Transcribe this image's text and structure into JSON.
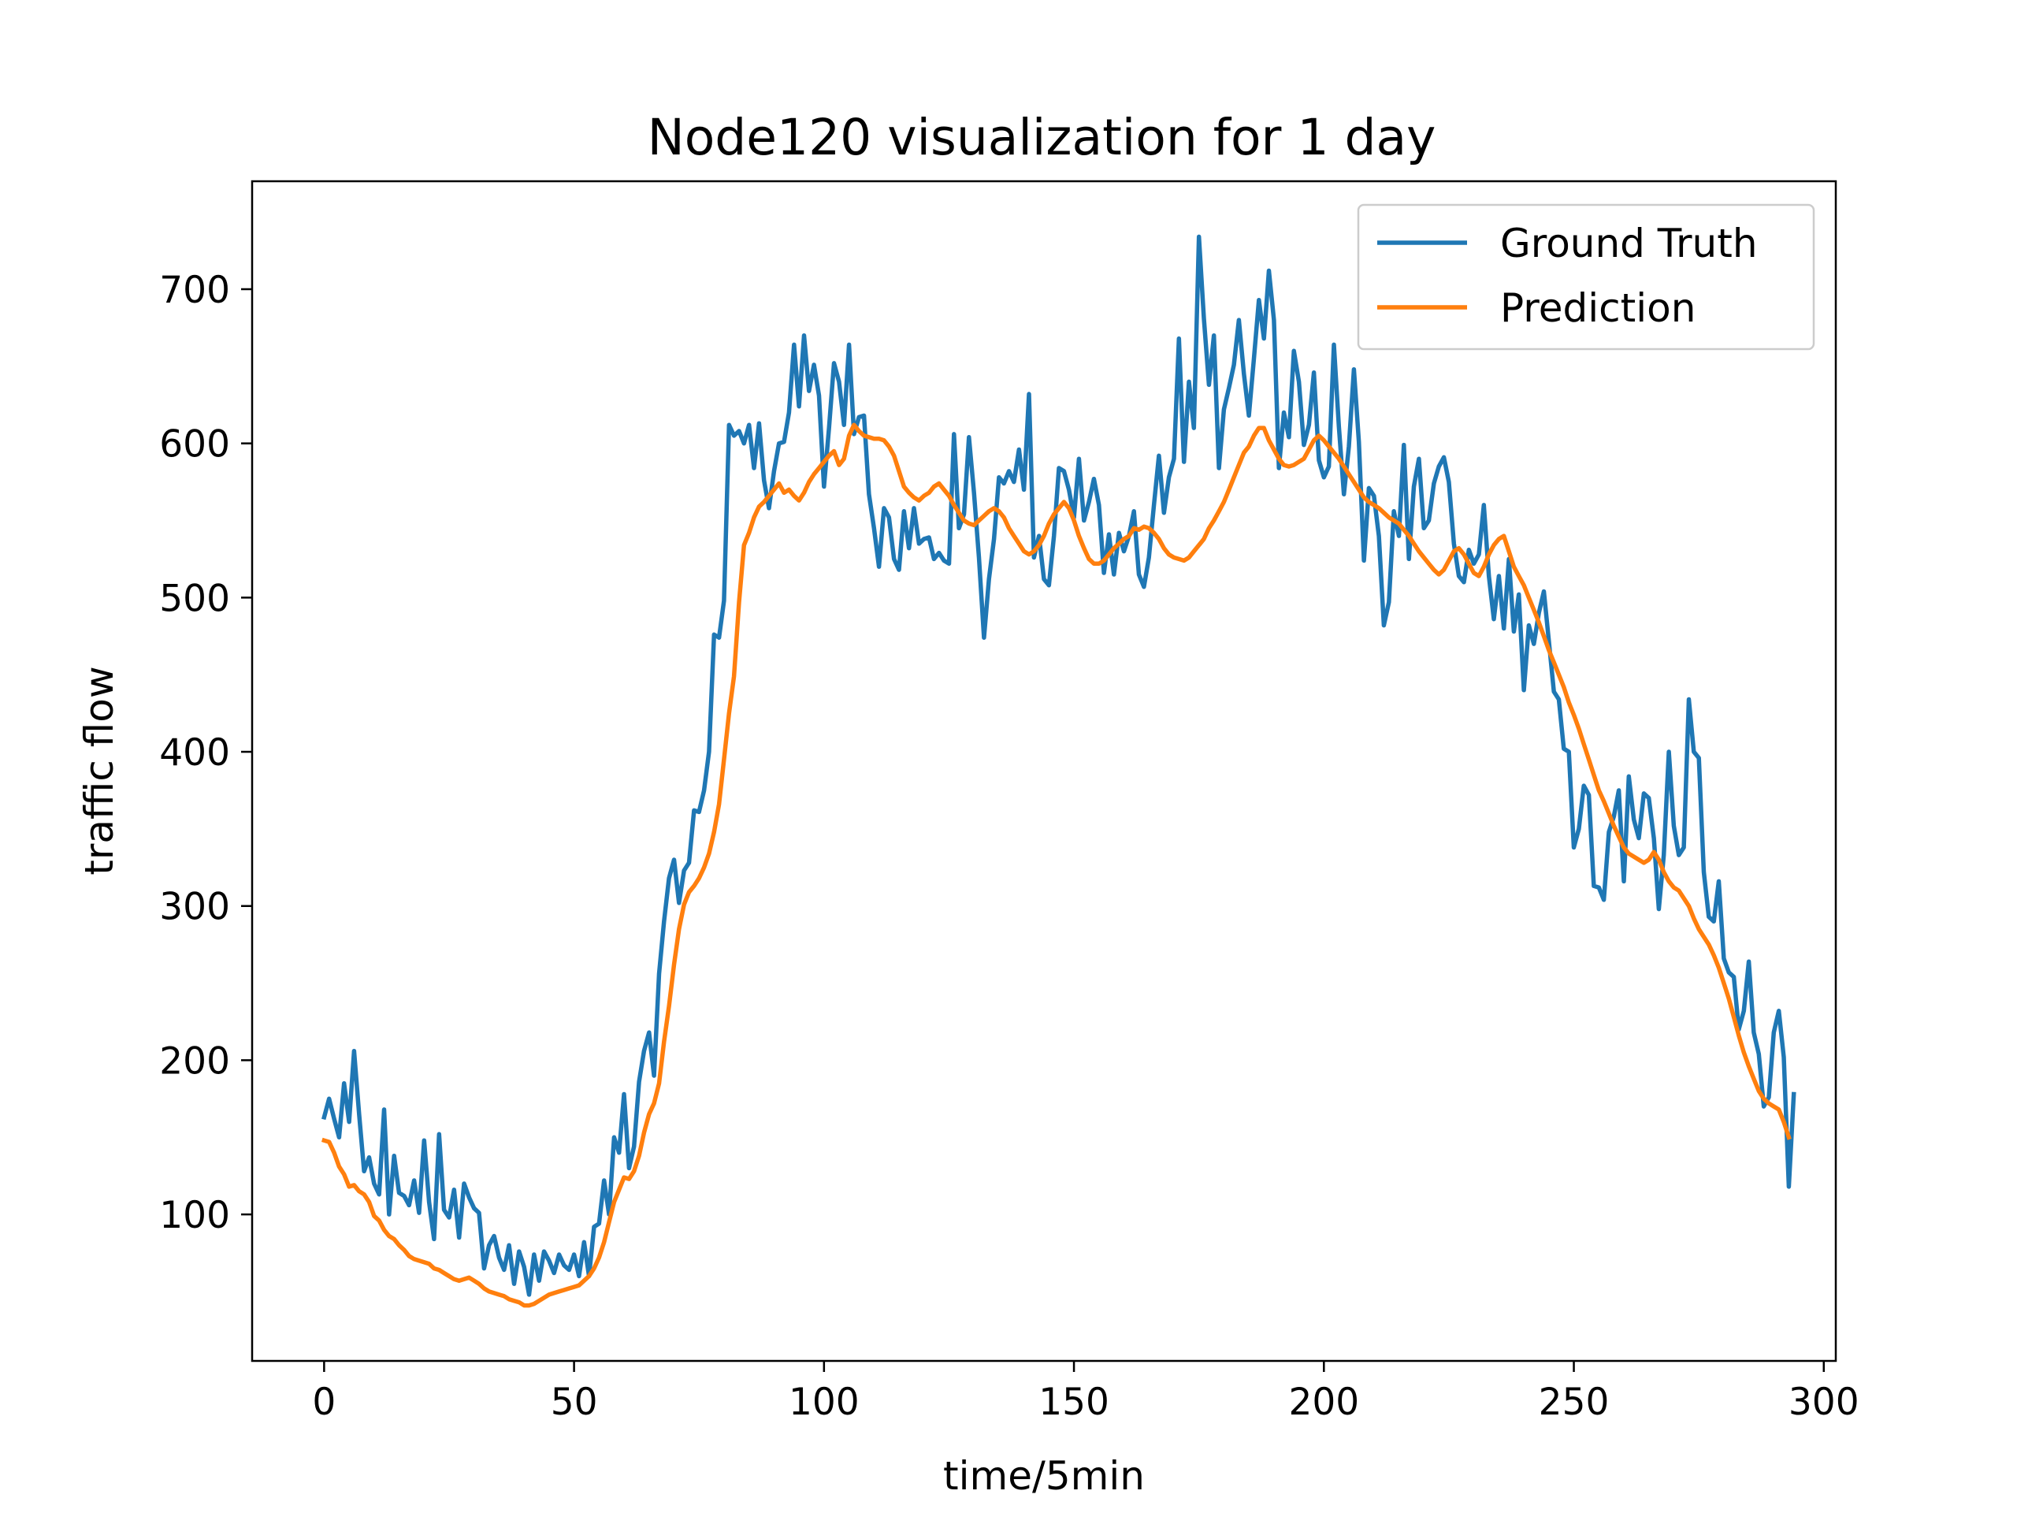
{
  "chart_data": {
    "type": "line",
    "title": "Node120 visualization for 1 day",
    "xlabel": "time/5min",
    "ylabel": "traffic flow",
    "xlim": [
      -14.4,
      302.4
    ],
    "ylim": [
      5,
      770
    ],
    "xticks": [
      0,
      50,
      100,
      150,
      200,
      250,
      300
    ],
    "yticks": [
      100,
      200,
      300,
      400,
      500,
      600,
      700
    ],
    "xtick_labels": [
      "0",
      "50",
      "100",
      "150",
      "200",
      "250",
      "300"
    ],
    "ytick_labels": [
      "100",
      "200",
      "300",
      "400",
      "500",
      "600",
      "700"
    ],
    "grid": false,
    "legend_position": "top-right",
    "series": [
      {
        "name": "Ground Truth",
        "color": "#1f77b4",
        "values": [
          163,
          175,
          162,
          150,
          185,
          160,
          206,
          165,
          128,
          137,
          120,
          113,
          168,
          100,
          138,
          114,
          112,
          106,
          122,
          101,
          148,
          108,
          84,
          152,
          103,
          98,
          116,
          85,
          120,
          111,
          104,
          101,
          65,
          80,
          86,
          72,
          64,
          80,
          55,
          76,
          66,
          48,
          74,
          57,
          76,
          70,
          62,
          74,
          67,
          64,
          74,
          60,
          82,
          60,
          92,
          94,
          122,
          100,
          150,
          140,
          178,
          130,
          144,
          186,
          206,
          218,
          190,
          256,
          290,
          318,
          330,
          302,
          323,
          328,
          362,
          361,
          375,
          400,
          476,
          474,
          498,
          612,
          605,
          608,
          600,
          612,
          584,
          613,
          576,
          558,
          582,
          600,
          601,
          620,
          664,
          624,
          670,
          634,
          651,
          631,
          572,
          610,
          652,
          640,
          612,
          664,
          606,
          617,
          618,
          567,
          545,
          520,
          558,
          552,
          525,
          518,
          556,
          532,
          558,
          535,
          538,
          539,
          525,
          529,
          524,
          522,
          606,
          545,
          554,
          604,
          568,
          526,
          474,
          512,
          538,
          578,
          574,
          582,
          575,
          596,
          570,
          632,
          526,
          540,
          512,
          508,
          540,
          584,
          582,
          570,
          552,
          590,
          550,
          562,
          577,
          560,
          516,
          541,
          515,
          542,
          530,
          540,
          556,
          515,
          507,
          526,
          560,
          592,
          555,
          578,
          590,
          668,
          588,
          640,
          610,
          734,
          681,
          638,
          670,
          584,
          622,
          636,
          651,
          680,
          645,
          618,
          655,
          693,
          668,
          712,
          680,
          584,
          620,
          604,
          660,
          640,
          599,
          612,
          646,
          589,
          578,
          585,
          664,
          611,
          567,
          598,
          648,
          601,
          524,
          571,
          566,
          540,
          482,
          497,
          556,
          540,
          599,
          525,
          572,
          590,
          545,
          550,
          574,
          585,
          591,
          575,
          535,
          514,
          510,
          531,
          522,
          528,
          560,
          514,
          486,
          514,
          480,
          525,
          478,
          502,
          440,
          482,
          470,
          490,
          504,
          472,
          439,
          434,
          402,
          400,
          338,
          350,
          378,
          372,
          313,
          312,
          304,
          348,
          358,
          375,
          316,
          384,
          356,
          344,
          373,
          370,
          344,
          298,
          333,
          400,
          352,
          333,
          338,
          434,
          400,
          396,
          322,
          293,
          290,
          316,
          266,
          257,
          254,
          220,
          232,
          264,
          218,
          204,
          170,
          176,
          218,
          232,
          202,
          118,
          178
        ]
      },
      {
        "name": "Prediction",
        "color": "#ff7f0e",
        "values": [
          148,
          147,
          140,
          131,
          126,
          118,
          119,
          115,
          113,
          108,
          99,
          96,
          90,
          86,
          84,
          80,
          77,
          73,
          71,
          70,
          69,
          68,
          65,
          64,
          62,
          60,
          58,
          57,
          58,
          59,
          57,
          55,
          52,
          50,
          49,
          48,
          47,
          45,
          44,
          43,
          41,
          41,
          42,
          44,
          46,
          48,
          49,
          50,
          51,
          52,
          53,
          54,
          57,
          60,
          65,
          72,
          82,
          95,
          108,
          116,
          124,
          123,
          128,
          138,
          153,
          165,
          172,
          185,
          212,
          235,
          262,
          285,
          301,
          309,
          313,
          318,
          325,
          334,
          348,
          366,
          395,
          425,
          449,
          497,
          534,
          542,
          552,
          559,
          562,
          566,
          570,
          574,
          568,
          570,
          566,
          563,
          568,
          575,
          580,
          584,
          588,
          592,
          595,
          586,
          590,
          605,
          612,
          608,
          605,
          604,
          603,
          603,
          602,
          598,
          592,
          582,
          572,
          568,
          565,
          563,
          566,
          568,
          572,
          574,
          570,
          566,
          560,
          555,
          550,
          548,
          547,
          550,
          553,
          556,
          558,
          556,
          552,
          545,
          540,
          535,
          530,
          528,
          530,
          534,
          540,
          548,
          554,
          558,
          562,
          558,
          550,
          540,
          532,
          525,
          522,
          522,
          524,
          528,
          532,
          535,
          538,
          540,
          545,
          544,
          546,
          545,
          542,
          538,
          532,
          528,
          526,
          525,
          524,
          526,
          530,
          534,
          538,
          545,
          550,
          556,
          562,
          570,
          578,
          586,
          594,
          598,
          605,
          610,
          610,
          602,
          596,
          590,
          586,
          585,
          586,
          588,
          590,
          596,
          602,
          605,
          602,
          598,
          594,
          590,
          585,
          580,
          575,
          570,
          565,
          562,
          560,
          558,
          555,
          552,
          550,
          548,
          544,
          540,
          535,
          530,
          526,
          522,
          518,
          515,
          518,
          524,
          530,
          532,
          528,
          522,
          516,
          514,
          520,
          528,
          534,
          538,
          540,
          530,
          520,
          514,
          508,
          500,
          492,
          484,
          475,
          466,
          458,
          450,
          442,
          432,
          424,
          415,
          405,
          395,
          385,
          375,
          368,
          360,
          352,
          345,
          338,
          334,
          332,
          330,
          328,
          330,
          335,
          330,
          322,
          316,
          312,
          310,
          305,
          300,
          292,
          285,
          280,
          275,
          268,
          260,
          250,
          240,
          228,
          216,
          205,
          196,
          188,
          180,
          175,
          172,
          170,
          168,
          160,
          150
        ]
      }
    ]
  }
}
